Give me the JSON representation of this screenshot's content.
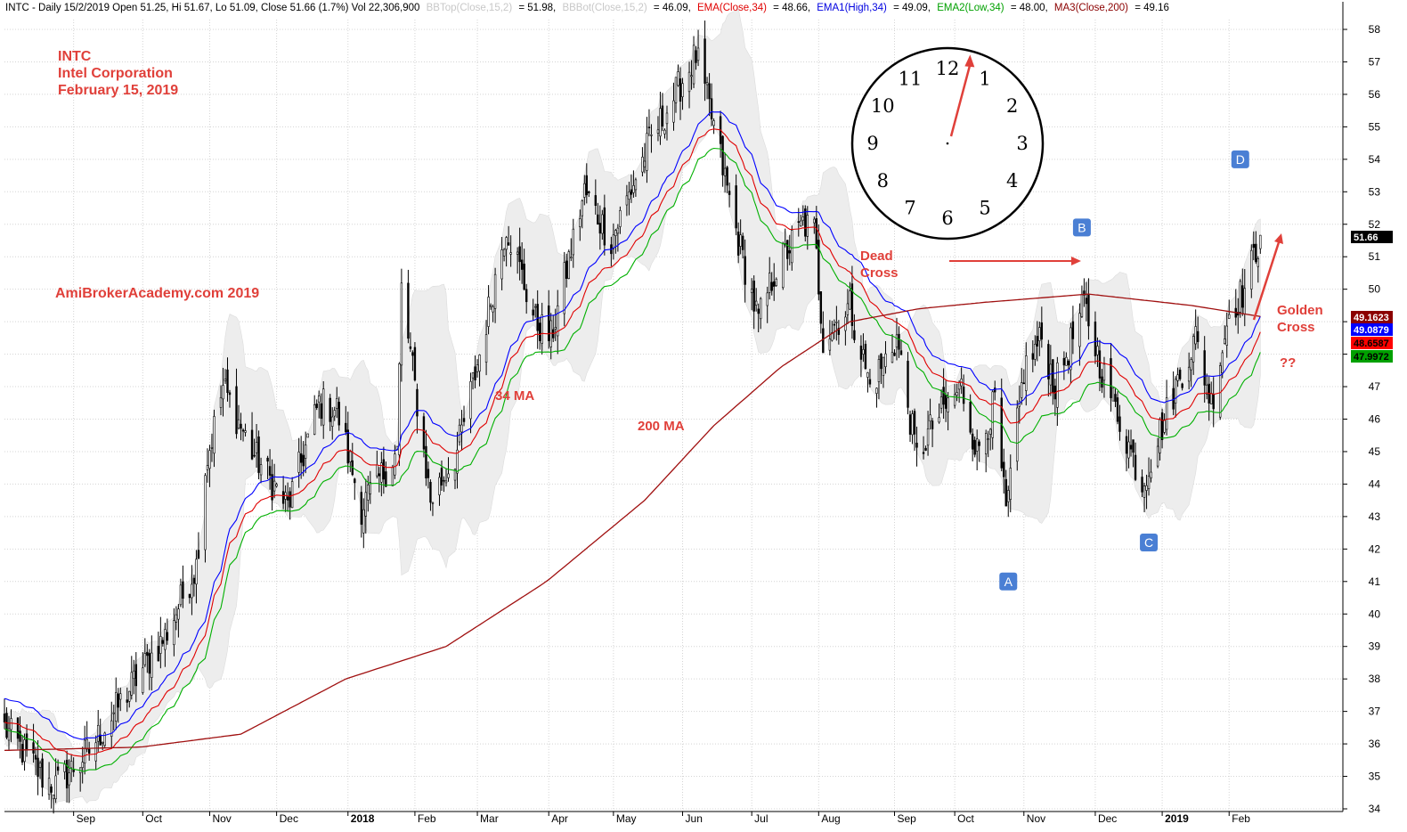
{
  "header": {
    "summary": "INTC - Daily 15/2/2019 Open 51.25, Hi 51.67, Lo 51.09, Close 51.66 (1.7%) Vol 22,306,900",
    "bbtop": {
      "label": "BBTop(Close,15,2)",
      "value": "= 51.98,",
      "color": "#c8c8c8"
    },
    "bbbot": {
      "label": "BBBot(Close,15,2)",
      "value": "= 46.09,",
      "color": "#c8c8c8"
    },
    "ema34": {
      "label": "EMA(Close,34)",
      "value": "= 48.66,",
      "color": "#e00000"
    },
    "ema1": {
      "label": "EMA1(High,34)",
      "value": "= 49.09,",
      "color": "#0000e0"
    },
    "ema2": {
      "label": "EMA2(Low,34)",
      "value": "= 48.00,",
      "color": "#00a000"
    },
    "ma3": {
      "label": "MA3(Close,200)",
      "value": "= 49.16",
      "color": "#8b0000"
    }
  },
  "annotations": {
    "ticker": "INTC",
    "company": "Intel Corporation",
    "date": "February 15, 2019",
    "site": "AmiBrokerAcademy.com  2019",
    "ma34": "34 MA",
    "ma200": "200 MA",
    "dead_cross_1": "Dead",
    "dead_cross_2": "Cross",
    "golden_cross_1": "Golden",
    "golden_cross_2": "Cross",
    "question": "??"
  },
  "points": [
    {
      "label": "A",
      "x": "2018-10-25",
      "y": 41.0
    },
    {
      "label": "B",
      "x": "2018-11-27",
      "y": 51.9
    },
    {
      "label": "C",
      "x": "2018-12-27",
      "y": 42.2
    },
    {
      "label": "D",
      "x": "2019-02-06",
      "y": 54.0
    }
  ],
  "clock": {
    "numbers": [
      "12",
      "1",
      "2",
      "3",
      "4",
      "5",
      "6",
      "7",
      "8",
      "9",
      "10",
      "11"
    ],
    "hand_hour": 0.5
  },
  "price_tags": [
    {
      "value": "51.66",
      "bg": "#000000",
      "fg": "#ffffff"
    },
    {
      "value": "49.1623",
      "bg": "#8b0000",
      "fg": "#ffffff"
    },
    {
      "value": "49.0879",
      "bg": "#0000ff",
      "fg": "#ffffff"
    },
    {
      "value": "48.6587",
      "bg": "#ff0000",
      "fg": "#000000"
    },
    {
      "value": "47.9972",
      "bg": "#00a000",
      "fg": "#000000"
    }
  ],
  "colors": {
    "ema34": "#e00000",
    "ema_high": "#0000ff",
    "ema_low": "#00b000",
    "ma200": "#a01010",
    "band_fill": "#ededed",
    "grid": "#d4d4d4",
    "annotation": "#e0403a",
    "point_box": "#4a7fd4"
  },
  "chart_data": {
    "type": "candlestick",
    "symbol": "INTC",
    "period": "Daily",
    "ylim": [
      34,
      58
    ],
    "y_ticks": [
      34,
      35,
      36,
      37,
      38,
      39,
      40,
      41,
      42,
      43,
      44,
      45,
      46,
      47,
      48,
      49,
      50,
      51,
      52,
      53,
      54,
      55,
      56,
      57,
      58
    ],
    "x_ticks": [
      {
        "date": "2017-09-01",
        "label": "Sep",
        "bold": false
      },
      {
        "date": "2017-10-02",
        "label": "Oct",
        "bold": false
      },
      {
        "date": "2017-11-01",
        "label": "Nov",
        "bold": false
      },
      {
        "date": "2017-12-01",
        "label": "Dec",
        "bold": false
      },
      {
        "date": "2018-01-02",
        "label": "2018",
        "bold": true
      },
      {
        "date": "2018-02-01",
        "label": "Feb",
        "bold": false
      },
      {
        "date": "2018-03-01",
        "label": "Mar",
        "bold": false
      },
      {
        "date": "2018-04-02",
        "label": "Apr",
        "bold": false
      },
      {
        "date": "2018-05-01",
        "label": "May",
        "bold": false
      },
      {
        "date": "2018-06-01",
        "label": "Jun",
        "bold": false
      },
      {
        "date": "2018-07-02",
        "label": "Jul",
        "bold": false
      },
      {
        "date": "2018-08-01",
        "label": "Aug",
        "bold": false
      },
      {
        "date": "2018-09-04",
        "label": "Sep",
        "bold": false
      },
      {
        "date": "2018-10-01",
        "label": "Oct",
        "bold": false
      },
      {
        "date": "2018-11-01",
        "label": "Nov",
        "bold": false
      },
      {
        "date": "2018-12-03",
        "label": "Dec",
        "bold": false
      },
      {
        "date": "2019-01-02",
        "label": "2019",
        "bold": true
      },
      {
        "date": "2019-02-01",
        "label": "Feb",
        "bold": false
      }
    ],
    "x_range": [
      "2017-08-01",
      "2019-03-24"
    ],
    "close_anchors": [
      {
        "date": "2017-08-01",
        "close": 36.5
      },
      {
        "date": "2017-08-18",
        "close": 35.0
      },
      {
        "date": "2017-08-24",
        "close": 34.7
      },
      {
        "date": "2017-09-08",
        "close": 35.8
      },
      {
        "date": "2017-09-29",
        "close": 38.0
      },
      {
        "date": "2017-10-12",
        "close": 39.3
      },
      {
        "date": "2017-10-26",
        "close": 41.5
      },
      {
        "date": "2017-10-30",
        "close": 44.5
      },
      {
        "date": "2017-11-07",
        "close": 47.0
      },
      {
        "date": "2017-11-20",
        "close": 45.0
      },
      {
        "date": "2017-12-06",
        "close": 43.3
      },
      {
        "date": "2017-12-20",
        "close": 46.5
      },
      {
        "date": "2017-12-28",
        "close": 46.3
      },
      {
        "date": "2018-01-08",
        "close": 43.3
      },
      {
        "date": "2018-01-24",
        "close": 45.0
      },
      {
        "date": "2018-01-26",
        "close": 50.0
      },
      {
        "date": "2018-02-08",
        "close": 43.5
      },
      {
        "date": "2018-02-20",
        "close": 45.0
      },
      {
        "date": "2018-03-02",
        "close": 48.0
      },
      {
        "date": "2018-03-14",
        "close": 52.0
      },
      {
        "date": "2018-03-27",
        "close": 49.0
      },
      {
        "date": "2018-04-03",
        "close": 48.5
      },
      {
        "date": "2018-04-18",
        "close": 53.0
      },
      {
        "date": "2018-04-30",
        "close": 51.5
      },
      {
        "date": "2018-05-17",
        "close": 54.5
      },
      {
        "date": "2018-06-07",
        "close": 57.2
      },
      {
        "date": "2018-06-15",
        "close": 55.0
      },
      {
        "date": "2018-06-26",
        "close": 51.5
      },
      {
        "date": "2018-07-05",
        "close": 49.0
      },
      {
        "date": "2018-07-12",
        "close": 50.5
      },
      {
        "date": "2018-07-25",
        "close": 52.0
      },
      {
        "date": "2018-07-30",
        "close": 51.8
      },
      {
        "date": "2018-08-03",
        "close": 48.5
      },
      {
        "date": "2018-08-15",
        "close": 49.5
      },
      {
        "date": "2018-08-24",
        "close": 47.0
      },
      {
        "date": "2018-09-05",
        "close": 48.5
      },
      {
        "date": "2018-09-14",
        "close": 44.8
      },
      {
        "date": "2018-09-21",
        "close": 45.8
      },
      {
        "date": "2018-10-04",
        "close": 47.0
      },
      {
        "date": "2018-10-11",
        "close": 45.0
      },
      {
        "date": "2018-10-19",
        "close": 46.5
      },
      {
        "date": "2018-10-24",
        "close": 43.0
      },
      {
        "date": "2018-11-01",
        "close": 47.5
      },
      {
        "date": "2018-11-09",
        "close": 48.5
      },
      {
        "date": "2018-11-15",
        "close": 47.0
      },
      {
        "date": "2018-11-28",
        "close": 49.5
      },
      {
        "date": "2018-12-06",
        "close": 47.5
      },
      {
        "date": "2018-12-14",
        "close": 46.0
      },
      {
        "date": "2018-12-24",
        "close": 44.0
      },
      {
        "date": "2019-01-08",
        "close": 47.0
      },
      {
        "date": "2019-01-17",
        "close": 48.5
      },
      {
        "date": "2019-01-24",
        "close": 46.5
      },
      {
        "date": "2019-02-01",
        "close": 49.3
      },
      {
        "date": "2019-02-08",
        "close": 50.0
      },
      {
        "date": "2019-02-15",
        "close": 51.66
      }
    ],
    "last_bar": {
      "date": "2019-02-15",
      "open": 51.25,
      "high": 51.67,
      "low": 51.09,
      "close": 51.66,
      "change_pct": 1.7,
      "volume": 22306900
    },
    "indicators": {
      "bbtop": 51.98,
      "bbbot": 46.09,
      "ema_close_34": 48.66,
      "ema_high_34": 49.09,
      "ema_low_34": 48.0,
      "ma_close_200": 49.16
    },
    "ma200_anchors": [
      {
        "date": "2017-08-01",
        "value": 35.8
      },
      {
        "date": "2017-10-01",
        "value": 35.9
      },
      {
        "date": "2017-11-15",
        "value": 36.3
      },
      {
        "date": "2018-01-01",
        "value": 38.0
      },
      {
        "date": "2018-02-15",
        "value": 39.0
      },
      {
        "date": "2018-04-01",
        "value": 41.0
      },
      {
        "date": "2018-05-15",
        "value": 43.5
      },
      {
        "date": "2018-06-15",
        "value": 45.8
      },
      {
        "date": "2018-07-15",
        "value": 47.6
      },
      {
        "date": "2018-08-15",
        "value": 49.0
      },
      {
        "date": "2018-09-15",
        "value": 49.4
      },
      {
        "date": "2018-10-15",
        "value": 49.6
      },
      {
        "date": "2018-11-30",
        "value": 49.85
      },
      {
        "date": "2019-01-15",
        "value": 49.5
      },
      {
        "date": "2019-02-15",
        "value": 49.16
      }
    ]
  }
}
